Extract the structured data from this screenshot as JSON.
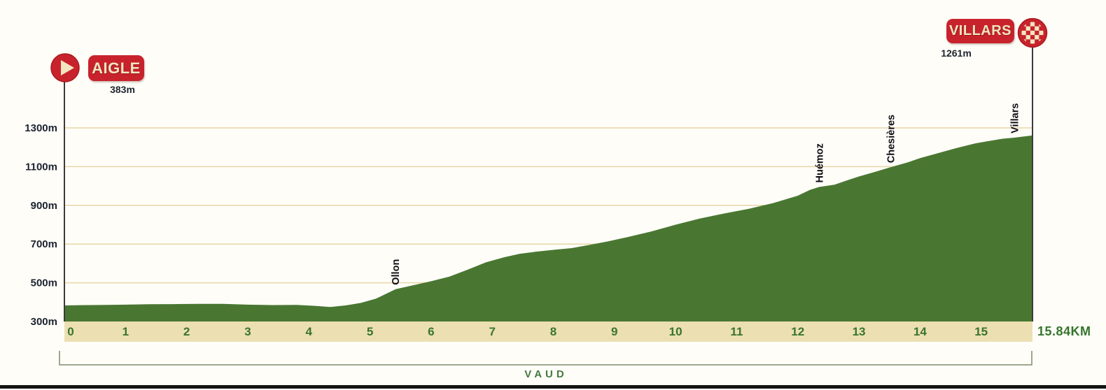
{
  "stage": {
    "start": {
      "name": "AIGLE",
      "elevation": "383m"
    },
    "finish": {
      "name": "VILLARS",
      "elevation": "1261m"
    },
    "region": "VAUD",
    "total_distance": "15.84KM"
  },
  "chart_data": {
    "type": "area",
    "x_unit": "km",
    "xlim": [
      0,
      15.84
    ],
    "x_ticks": [
      0,
      1,
      2,
      3,
      4,
      5,
      6,
      7,
      8,
      9,
      10,
      11,
      12,
      13,
      14,
      15
    ],
    "y_axis": {
      "unit": "m",
      "ticks": [
        300,
        500,
        700,
        900,
        1100,
        1300
      ],
      "labels": [
        "300m",
        "500m",
        "700m",
        "900m",
        "1100m",
        "1300m"
      ]
    },
    "grid": true,
    "area_color": "#497732",
    "profile_km_m": [
      [
        0,
        383
      ],
      [
        0.35,
        385
      ],
      [
        0.7,
        386
      ],
      [
        1,
        387
      ],
      [
        1.4,
        389
      ],
      [
        1.8,
        390
      ],
      [
        2.2,
        391
      ],
      [
        2.6,
        391
      ],
      [
        3,
        387
      ],
      [
        3.4,
        385
      ],
      [
        3.8,
        386
      ],
      [
        4.1,
        381
      ],
      [
        4.35,
        375
      ],
      [
        4.6,
        383
      ],
      [
        4.85,
        396
      ],
      [
        5.1,
        418
      ],
      [
        5.42,
        467
      ],
      [
        5.7,
        487
      ],
      [
        6,
        508
      ],
      [
        6.3,
        532
      ],
      [
        6.6,
        568
      ],
      [
        6.9,
        606
      ],
      [
        7.2,
        632
      ],
      [
        7.45,
        650
      ],
      [
        7.7,
        660
      ],
      [
        8,
        670
      ],
      [
        8.3,
        679
      ],
      [
        8.6,
        696
      ],
      [
        8.9,
        714
      ],
      [
        9.2,
        735
      ],
      [
        9.6,
        765
      ],
      [
        10,
        800
      ],
      [
        10.4,
        832
      ],
      [
        10.8,
        858
      ],
      [
        11.2,
        882
      ],
      [
        11.6,
        912
      ],
      [
        12,
        950
      ],
      [
        12.2,
        980
      ],
      [
        12.35,
        995
      ],
      [
        12.6,
        1007
      ],
      [
        12.8,
        1028
      ],
      [
        13,
        1049
      ],
      [
        13.25,
        1072
      ],
      [
        13.52,
        1097
      ],
      [
        13.8,
        1122
      ],
      [
        14,
        1144
      ],
      [
        14.3,
        1170
      ],
      [
        14.6,
        1196
      ],
      [
        14.9,
        1220
      ],
      [
        15.1,
        1231
      ],
      [
        15.35,
        1244
      ],
      [
        15.55,
        1250
      ],
      [
        15.84,
        1261
      ]
    ],
    "waypoints": [
      {
        "name": "Ollon",
        "km": 5.42,
        "elevation_m": 467
      },
      {
        "name": "Huémoz",
        "km": 12.35,
        "elevation_m": 995
      },
      {
        "name": "Chesières",
        "km": 13.52,
        "elevation_m": 1097
      },
      {
        "name": "Villars",
        "km": 15.55,
        "elevation_m": 1250
      }
    ],
    "start_point": {
      "name": "AIGLE",
      "km": 0,
      "elevation_m": 383
    },
    "finish_point": {
      "name": "VILLARS",
      "km": 15.84,
      "elevation_m": 1261
    },
    "region_label": "VAUD",
    "total_distance_km": 15.84
  },
  "colors": {
    "marker_red": "#c8232c",
    "marker_red_edge": "#a8191f",
    "cream": "#f2e6c0",
    "profile_green": "#497732",
    "band_tan": "#ecdfb2",
    "gridline_tan": "#e7d7a6",
    "tick_green": "#37752e",
    "axis_dark": "#3b3b3b",
    "ylabel_dark": "#1b2330",
    "waypoint_dark": "#0e0e14",
    "bracket_olive": "#7e8c6b",
    "background": "#fffdf8"
  }
}
